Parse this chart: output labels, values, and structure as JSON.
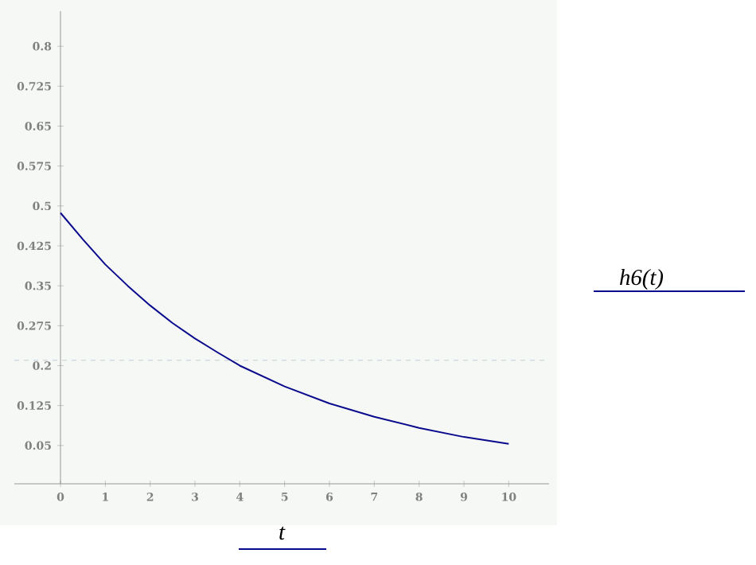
{
  "chart_data": {
    "type": "line",
    "xlabel": "t",
    "ylabel": "h6(t)",
    "x": [
      0,
      0.5,
      1,
      1.5,
      2,
      2.5,
      3,
      3.5,
      4,
      5,
      6,
      7,
      8,
      9,
      10
    ],
    "series": [
      {
        "color": "#0a0a8c",
        "values": [
          0.487,
          0.437,
          0.39,
          0.35,
          0.313,
          0.28,
          0.251,
          0.225,
          0.2,
          0.161,
          0.129,
          0.104,
          0.083,
          0.066,
          0.053
        ]
      }
    ],
    "xlim": [
      -1.03,
      10.9
    ],
    "ylim": [
      -0.022,
      0.866
    ],
    "xticks": [
      0,
      1,
      2,
      3,
      4,
      5,
      6,
      7,
      8,
      9,
      10
    ],
    "yticks": [
      0.05,
      0.125,
      0.2,
      0.275,
      0.35,
      0.425,
      0.5,
      0.575,
      0.65,
      0.725,
      0.8
    ],
    "ref_lines": [
      {
        "axis": "y",
        "value": 0.21,
        "color": "#b8c4d0",
        "line_style": "dashed"
      }
    ],
    "grid": false,
    "marker": "none",
    "line_style": "solid"
  }
}
